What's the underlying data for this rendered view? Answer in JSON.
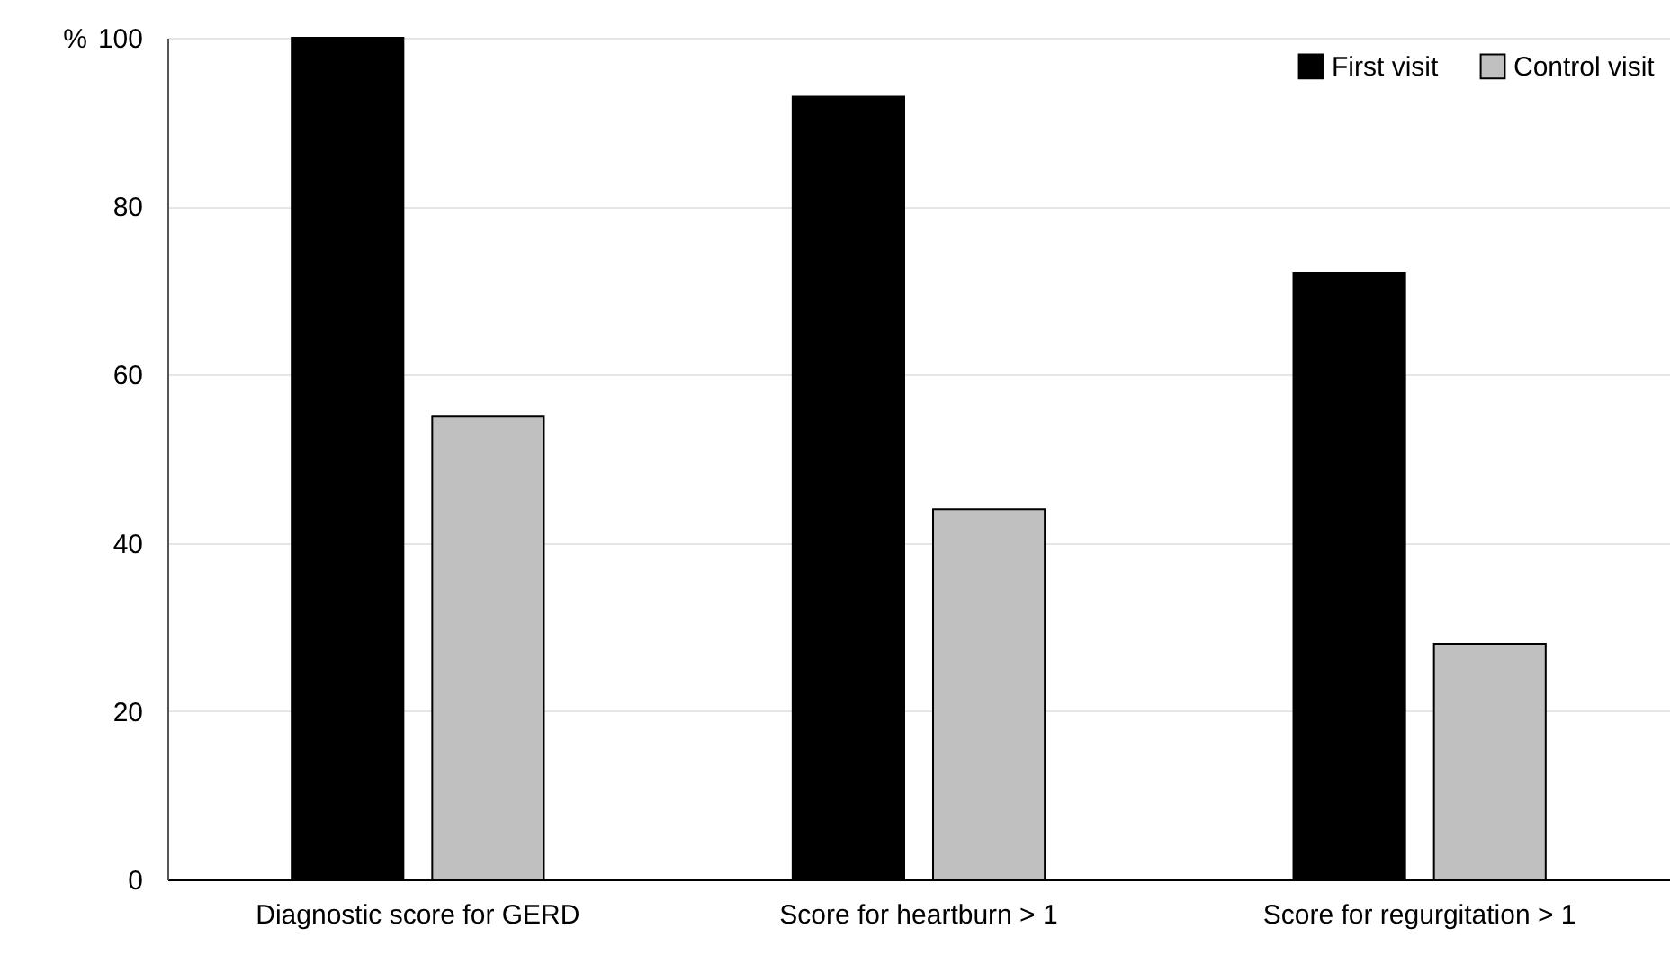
{
  "chart_data": {
    "type": "bar",
    "ylabel": "%",
    "categories": [
      "Diagnostic score for GERD",
      "Score for heartburn > 1",
      "Score for regurgitation > 1"
    ],
    "series": [
      {
        "name": "First visit",
        "color": "#000000",
        "values": [
          100,
          93,
          72
        ]
      },
      {
        "name": "Control visit",
        "color": "#c0c0c0",
        "values": [
          55,
          44,
          28
        ]
      }
    ],
    "ylim": [
      0,
      100
    ],
    "yticks": [
      0,
      20,
      40,
      60,
      80,
      100
    ],
    "grid": "y",
    "legend": "top right"
  }
}
